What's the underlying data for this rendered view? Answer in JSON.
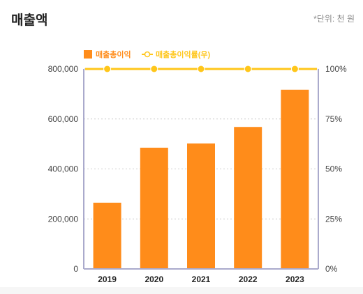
{
  "header": {
    "title": "매출액",
    "unit": "*단위: 천 원"
  },
  "colors": {
    "bar": "#ff8c1a",
    "line": "#ffc61a",
    "axis": "#aaaacc",
    "grid": "#cccccc",
    "text": "#222222"
  },
  "chart_data": {
    "type": "bar",
    "categories": [
      "2019",
      "2020",
      "2021",
      "2022",
      "2023"
    ],
    "series": [
      {
        "name": "매출총이익",
        "type": "bar",
        "axis": "left",
        "values": [
          265000,
          485000,
          502000,
          568000,
          717000
        ]
      },
      {
        "name": "매출총이익률(우)",
        "type": "line",
        "axis": "right",
        "values": [
          100,
          100,
          100,
          100,
          100
        ]
      }
    ],
    "y_left": {
      "ylim": [
        0,
        800000
      ],
      "ticks": [
        "0",
        "200,000",
        "400,000",
        "600,000",
        "800,000"
      ]
    },
    "y_right": {
      "ylim": [
        0,
        100
      ],
      "ticks": [
        "0%",
        "25%",
        "50%",
        "75%",
        "100%"
      ]
    },
    "legend_position": "top-left",
    "grid": true
  }
}
